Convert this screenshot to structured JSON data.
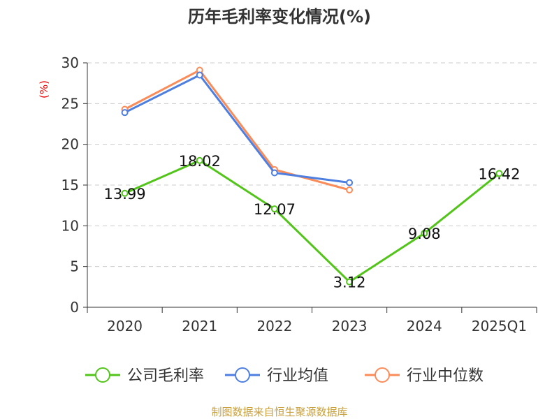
{
  "chart_data": {
    "type": "line",
    "title": "历年毛利率变化情况(%)",
    "ylabel": "(%)",
    "xlabel": "",
    "ylim": [
      0,
      30
    ],
    "yticks": [
      0,
      5,
      10,
      15,
      20,
      25,
      30
    ],
    "grid": true,
    "legend_position": "bottom",
    "categories": [
      "2020",
      "2021",
      "2022",
      "2023",
      "2024",
      "2025Q1"
    ],
    "series": [
      {
        "name": "公司毛利率",
        "color": "#52c41a",
        "values": [
          13.99,
          18.02,
          12.07,
          3.12,
          9.08,
          16.42
        ],
        "labels": [
          "13.99",
          "18.02",
          "12.07",
          "3.12",
          "9.08",
          "16.42"
        ]
      },
      {
        "name": "行业均值",
        "color": "#4e7fe0",
        "values": [
          23.9,
          28.5,
          16.5,
          15.3,
          null,
          null
        ]
      },
      {
        "name": "行业中位数",
        "color": "#fa8c5a",
        "values": [
          24.3,
          29.1,
          16.9,
          14.4,
          null,
          null
        ]
      }
    ]
  },
  "source": "制图数据来自恒生聚源数据库"
}
